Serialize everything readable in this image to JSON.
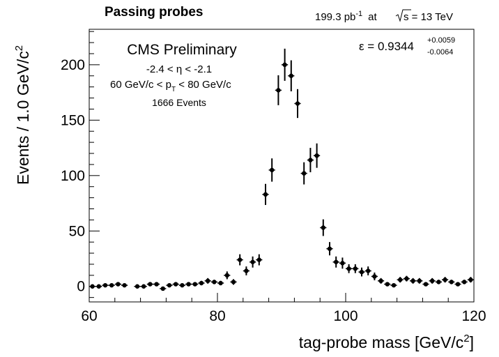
{
  "header": {
    "title": "Passing probes",
    "luminosity": "199.3 pb",
    "luminosity_sup": "-1",
    "at": "at",
    "energy": "s = 13 TeV"
  },
  "annotations": {
    "experiment": "CMS Preliminary",
    "eta_cut": "-2.4 < η < -2.1",
    "pt_cut_left": "60 GeV/c < p",
    "pt_cut_sub": "T",
    "pt_cut_right": " < 80 GeV/c",
    "events": "1666 Events",
    "efficiency": "ε = 0.9344",
    "efficiency_up": "+0.0059",
    "efficiency_down": "-0.0064"
  },
  "chart_data": {
    "type": "scatter",
    "title": "Passing probes",
    "xlabel": "tag-probe mass [GeV/c",
    "xlabel_sup": "2",
    "xlabel_tail": "]",
    "ylabel": "Events / 1.0 GeV/c",
    "ylabel_sup": "2",
    "xlim": [
      60,
      120
    ],
    "ylim": [
      -14,
      232
    ],
    "xticks": [
      60,
      80,
      100,
      120
    ],
    "yticks": [
      0,
      50,
      100,
      150,
      200
    ],
    "grid": false,
    "series": [
      {
        "x": [
          60.5,
          61.5,
          62.5,
          63.5,
          64.5,
          65.5,
          67.5,
          68.5,
          69.5,
          70.5,
          71.5,
          72.5,
          73.5,
          74.5,
          75.5,
          76.5,
          77.5,
          78.5,
          79.5,
          80.5,
          81.5,
          82.5,
          83.5,
          84.5,
          85.5,
          86.5,
          87.5,
          88.5,
          89.5,
          90.5,
          91.5,
          92.5,
          93.5,
          94.5,
          95.5,
          96.5,
          97.5,
          98.5,
          99.5,
          100.5,
          101.5,
          102.5,
          103.5,
          104.5,
          105.5,
          106.5,
          107.5,
          108.5,
          109.5,
          110.5,
          111.5,
          112.5,
          113.5,
          114.5,
          115.5,
          116.5,
          117.5,
          118.5,
          119.5
        ],
        "y": [
          0,
          0,
          1,
          1,
          2,
          1,
          0,
          0,
          2,
          2,
          -2,
          1,
          2,
          1,
          2,
          2,
          3,
          5,
          4,
          3,
          10,
          4,
          24,
          14,
          22,
          24,
          83,
          105,
          177,
          200,
          190,
          165,
          102,
          114,
          118,
          53,
          34,
          22,
          21,
          16,
          16,
          13,
          14,
          9,
          5,
          2,
          1,
          6,
          7,
          5,
          5,
          2,
          5,
          4,
          6,
          4,
          2,
          4,
          6
        ],
        "err": [
          1,
          1,
          1,
          1,
          1.5,
          1,
          1,
          1,
          1.5,
          1.5,
          1.5,
          1,
          1.5,
          1,
          1.5,
          1.5,
          2,
          2.5,
          2,
          2,
          3.5,
          2.5,
          5,
          4,
          5,
          5,
          9.5,
          10.5,
          13.5,
          14.5,
          14,
          13,
          10,
          11,
          11,
          7.5,
          6,
          5,
          5,
          4,
          4,
          4,
          4,
          3.5,
          2.5,
          1.5,
          1,
          2.5,
          2.5,
          2.5,
          2.5,
          1.5,
          2.5,
          2,
          2.5,
          2,
          1.5,
          2,
          2.5
        ]
      }
    ]
  }
}
